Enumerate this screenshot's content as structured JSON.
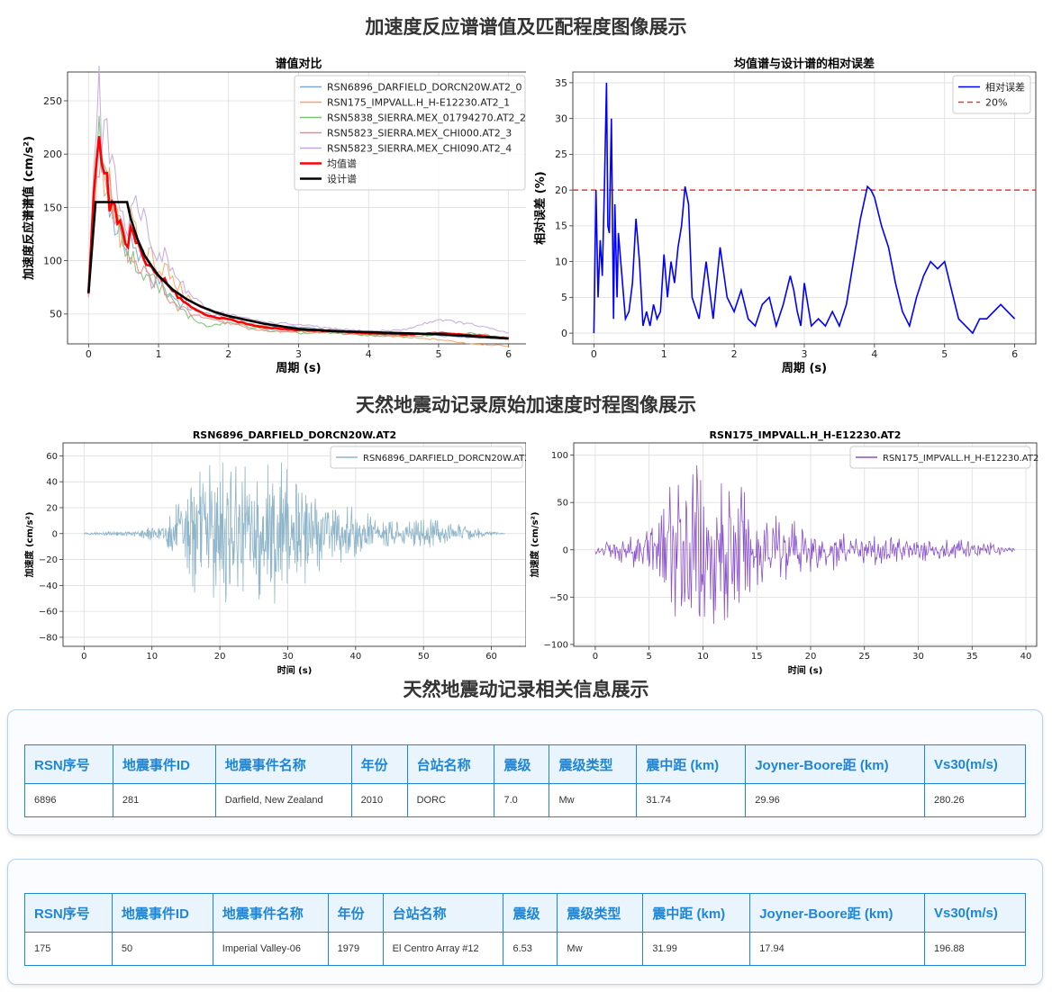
{
  "titles": {
    "spectra_section": "加速度反应谱谱值及匹配程度图像展示",
    "records_section": "天然地震动记录原始加速度时程图像展示",
    "info_section": "天然地震动记录相关信息展示"
  },
  "colors": {
    "series": [
      "#7fa8d1",
      "#f2a66a",
      "#77c274",
      "#ef8a8a",
      "#c3a8dc"
    ],
    "mean": "#ff0000",
    "design": "#000000",
    "error": "#0000ff",
    "threshold": "#e53935",
    "ts1": "#8fb5c9",
    "ts2": "#8a50cc",
    "table_header": "#1f86d6"
  },
  "chart_data": [
    {
      "id": "spectrum-compare",
      "type": "line",
      "title": "谱值对比",
      "xlabel": "周期 (s)",
      "ylabel": "加速度反应谱谱值 (cm/s²)",
      "xlim": [
        -0.3,
        6.3
      ],
      "ylim": [
        22,
        277
      ],
      "xticks": [
        0,
        1,
        2,
        3,
        4,
        5,
        6
      ],
      "yticks": [
        50,
        100,
        150,
        200,
        250
      ],
      "grid": true,
      "legend_position": "top-right",
      "series": [
        {
          "name": "RSN6896_DARFIELD_DORCN20W.AT2_0",
          "x": [
            0,
            0.05,
            0.1,
            0.15,
            0.2,
            0.25,
            0.3,
            0.35,
            0.4,
            0.45,
            0.5,
            0.55,
            0.6,
            0.7,
            0.8,
            0.9,
            1.0,
            1.1,
            1.2,
            1.3,
            1.5,
            1.7,
            2.0,
            2.3,
            2.6,
            3.0,
            3.5,
            4.0,
            4.5,
            5.0,
            5.5,
            6.0
          ],
          "y": [
            70,
            130,
            185,
            215,
            160,
            195,
            140,
            150,
            120,
            135,
            110,
            100,
            130,
            95,
            105,
            75,
            85,
            70,
            68,
            60,
            55,
            50,
            46,
            40,
            38,
            38,
            35,
            33,
            32,
            30,
            28,
            27
          ]
        },
        {
          "name": "RSN175_IMPVALL.H_H-E12230.AT2_1",
          "x": [
            0,
            0.05,
            0.1,
            0.15,
            0.2,
            0.25,
            0.3,
            0.35,
            0.4,
            0.45,
            0.5,
            0.55,
            0.6,
            0.7,
            0.8,
            0.9,
            1.0,
            1.1,
            1.2,
            1.3,
            1.5,
            1.7,
            2.0,
            2.3,
            2.6,
            3.0,
            3.5,
            4.0,
            4.5,
            5.0,
            5.5,
            6.0
          ],
          "y": [
            70,
            110,
            160,
            200,
            180,
            150,
            175,
            140,
            160,
            120,
            130,
            110,
            140,
            120,
            100,
            110,
            90,
            95,
            80,
            75,
            60,
            55,
            45,
            40,
            38,
            34,
            33,
            30,
            28,
            26,
            22,
            20
          ]
        },
        {
          "name": "RSN5838_SIERRA.MEX_01794270.AT2_2",
          "x": [
            0,
            0.05,
            0.1,
            0.15,
            0.2,
            0.25,
            0.3,
            0.35,
            0.4,
            0.45,
            0.5,
            0.55,
            0.6,
            0.7,
            0.8,
            0.9,
            1.0,
            1.1,
            1.2,
            1.3,
            1.5,
            1.7,
            2.0,
            2.3,
            2.6,
            3.0,
            3.5,
            4.0,
            4.5,
            5.0,
            5.5,
            6.0
          ],
          "y": [
            70,
            120,
            190,
            230,
            170,
            210,
            150,
            170,
            130,
            140,
            120,
            100,
            105,
            95,
            80,
            90,
            72,
            75,
            60,
            55,
            45,
            38,
            42,
            38,
            34,
            32,
            32,
            30,
            29,
            30,
            32,
            28
          ]
        },
        {
          "name": "RSN5823_SIERRA.MEX_CHI000.AT2_3",
          "x": [
            0,
            0.05,
            0.1,
            0.15,
            0.2,
            0.25,
            0.3,
            0.35,
            0.4,
            0.45,
            0.5,
            0.55,
            0.6,
            0.7,
            0.8,
            0.9,
            1.0,
            1.1,
            1.2,
            1.3,
            1.5,
            1.7,
            2.0,
            2.3,
            2.6,
            3.0,
            3.5,
            4.0,
            4.5,
            5.0,
            5.5,
            6.0
          ],
          "y": [
            70,
            140,
            200,
            180,
            220,
            160,
            190,
            130,
            150,
            140,
            130,
            100,
            110,
            95,
            90,
            80,
            85,
            65,
            60,
            55,
            50,
            45,
            42,
            36,
            34,
            34,
            33,
            31,
            30,
            33,
            30,
            27
          ]
        },
        {
          "name": "RSN5823_SIERRA.MEX_CHI090.AT2_4",
          "x": [
            0,
            0.05,
            0.1,
            0.15,
            0.2,
            0.25,
            0.3,
            0.35,
            0.4,
            0.45,
            0.5,
            0.55,
            0.6,
            0.7,
            0.8,
            0.9,
            1.0,
            1.1,
            1.2,
            1.3,
            1.5,
            1.7,
            2.0,
            2.3,
            2.6,
            3.0,
            3.5,
            4.0,
            4.5,
            5.0,
            5.5,
            6.0
          ],
          "y": [
            70,
            150,
            230,
            270,
            200,
            240,
            180,
            205,
            150,
            160,
            140,
            125,
            160,
            155,
            140,
            120,
            100,
            105,
            90,
            80,
            65,
            55,
            50,
            45,
            42,
            40,
            36,
            34,
            35,
            45,
            40,
            32
          ]
        },
        {
          "name": "均值谱",
          "x": [
            0,
            0.05,
            0.1,
            0.15,
            0.2,
            0.25,
            0.3,
            0.35,
            0.4,
            0.45,
            0.5,
            0.55,
            0.6,
            0.7,
            0.8,
            0.9,
            1.0,
            1.1,
            1.2,
            1.3,
            1.5,
            1.7,
            2.0,
            2.3,
            2.6,
            3.0,
            3.5,
            4.0,
            4.5,
            5.0,
            5.5,
            6.0
          ],
          "y": [
            70,
            130,
            190,
            210,
            180,
            195,
            150,
            160,
            135,
            140,
            125,
            110,
            130,
            115,
            100,
            95,
            85,
            80,
            72,
            65,
            55,
            48,
            45,
            40,
            37,
            35,
            34,
            32,
            31,
            32,
            30,
            27
          ]
        },
        {
          "name": "设计谱",
          "x": [
            0,
            0.1,
            0.2,
            0.3,
            0.4,
            0.5,
            0.55,
            0.6,
            0.7,
            0.8,
            0.9,
            1.0,
            1.2,
            1.4,
            1.6,
            1.8,
            2.0,
            2.5,
            3.0,
            3.5,
            4.0,
            4.5,
            5.0,
            5.5,
            6.0
          ],
          "y": [
            70,
            155,
            155,
            155,
            155,
            155,
            155,
            140,
            120,
            105,
            95,
            86,
            73,
            64,
            57,
            52,
            48,
            41,
            36,
            34,
            33,
            32,
            31,
            29,
            27
          ]
        }
      ]
    },
    {
      "id": "relative-error",
      "type": "line",
      "title": "均值谱与设计谱的相对误差",
      "xlabel": "周期 (s)",
      "ylabel": "相对误差 (%)",
      "xlim": [
        -0.3,
        6.3
      ],
      "ylim": [
        -1.5,
        36.5
      ],
      "xticks": [
        0,
        1,
        2,
        3,
        4,
        5,
        6
      ],
      "yticks": [
        0,
        5,
        10,
        15,
        20,
        25,
        30,
        35
      ],
      "grid": true,
      "legend_position": "top-right",
      "threshold": {
        "name": "20%",
        "value": 20
      },
      "series": [
        {
          "name": "相对误差",
          "x": [
            0,
            0.03,
            0.06,
            0.09,
            0.12,
            0.15,
            0.18,
            0.2,
            0.22,
            0.25,
            0.28,
            0.3,
            0.33,
            0.35,
            0.4,
            0.45,
            0.5,
            0.55,
            0.6,
            0.65,
            0.7,
            0.75,
            0.8,
            0.85,
            0.9,
            0.95,
            1.0,
            1.05,
            1.1,
            1.15,
            1.2,
            1.25,
            1.3,
            1.35,
            1.4,
            1.5,
            1.6,
            1.65,
            1.7,
            1.8,
            1.9,
            2.0,
            2.1,
            2.2,
            2.3,
            2.4,
            2.5,
            2.6,
            2.7,
            2.8,
            2.85,
            2.9,
            2.95,
            3.0,
            3.1,
            3.2,
            3.3,
            3.4,
            3.5,
            3.6,
            3.7,
            3.8,
            3.9,
            3.95,
            4.0,
            4.1,
            4.2,
            4.3,
            4.4,
            4.5,
            4.6,
            4.7,
            4.8,
            4.9,
            5.0,
            5.1,
            5.2,
            5.3,
            5.4,
            5.5,
            5.6,
            5.7,
            5.8,
            5.9,
            6.0
          ],
          "y": [
            0,
            20,
            5,
            13,
            8,
            20,
            35,
            15,
            14,
            30,
            2,
            18,
            5,
            14,
            8,
            2,
            3,
            7,
            16,
            10,
            1,
            3,
            1,
            4,
            2,
            3,
            11,
            5,
            10,
            7,
            12,
            15,
            20.5,
            18,
            5,
            2,
            10,
            6,
            2,
            12,
            5,
            3,
            6,
            2,
            1,
            4,
            5,
            1,
            4,
            8,
            6,
            3,
            1,
            7,
            1,
            2,
            1,
            3,
            1,
            4,
            10,
            16,
            20.5,
            20,
            19,
            15,
            12,
            7,
            3,
            1,
            5,
            8,
            10,
            9,
            10,
            6,
            2,
            1,
            0,
            2,
            2,
            3,
            4,
            3,
            2
          ]
        }
      ]
    },
    {
      "id": "ts-rsn6896",
      "type": "line",
      "title": "RSN6896_DARFIELD_DORCN20W.AT2",
      "xlabel": "时间 (s)",
      "ylabel": "加速度 (cm/s²)",
      "xlim": [
        -3.1,
        65.1
      ],
      "ylim": [
        -87,
        70
      ],
      "xticks": [
        0,
        10,
        20,
        30,
        40,
        50,
        60
      ],
      "yticks": [
        -80,
        -60,
        -40,
        -20,
        0,
        20,
        40,
        60
      ],
      "grid": true,
      "legend_position": "top-right",
      "series": [
        {
          "name": "RSN6896_DARFIELD_DORCN20W.AT2",
          "x": [
            0,
            8,
            12,
            14,
            16,
            18,
            20,
            22,
            24,
            26,
            28,
            30,
            32,
            34,
            36,
            38,
            40,
            44,
            48,
            52,
            56,
            60,
            62
          ],
          "y": [
            1,
            3,
            10,
            30,
            55,
            65,
            62,
            67,
            60,
            58,
            68,
            60,
            52,
            40,
            30,
            25,
            22,
            16,
            14,
            13,
            8,
            3,
            0
          ]
        }
      ]
    },
    {
      "id": "ts-rsn175",
      "type": "line",
      "title": "RSN175_IMPVALL.H_H-E12230.AT2",
      "xlabel": "时间 (s)",
      "ylabel": "加速度 (cm/s²)",
      "xlim": [
        -2,
        41
      ],
      "ylim": [
        -102,
        113
      ],
      "xticks": [
        0,
        5,
        10,
        15,
        20,
        25,
        30,
        35,
        40
      ],
      "yticks": [
        -100,
        -50,
        0,
        50,
        100
      ],
      "grid": true,
      "legend_position": "top-right",
      "series": [
        {
          "name": "RSN175_IMPVALL.H_H-E12230.AT2",
          "x": [
            0,
            2,
            4,
            5,
            6,
            7,
            8,
            9,
            10,
            11,
            12,
            13,
            14,
            15,
            16,
            18,
            20,
            22,
            24,
            26,
            28,
            30,
            32,
            34,
            36,
            38,
            39
          ],
          "y": [
            5,
            12,
            30,
            40,
            70,
            90,
            100,
            110,
            100,
            85,
            95,
            80,
            75,
            60,
            50,
            40,
            30,
            25,
            22,
            20,
            18,
            16,
            14,
            12,
            10,
            6,
            2
          ]
        }
      ]
    }
  ],
  "tables": [
    {
      "headers": [
        "RSN序号",
        "地震事件ID",
        "地震事件名称",
        "年份",
        "台站名称",
        "震级",
        "震级类型",
        "震中距 (km)",
        "Joyner-Boore距 (km)",
        "Vs30(m/s)"
      ],
      "row": [
        "6896",
        "281",
        "Darfield, New Zealand",
        "2010",
        "DORC",
        "7.0",
        "Mw",
        "31.74",
        "29.96",
        "280.26"
      ]
    },
    {
      "headers": [
        "RSN序号",
        "地震事件ID",
        "地震事件名称",
        "年份",
        "台站名称",
        "震级",
        "震级类型",
        "震中距 (km)",
        "Joyner-Boore距 (km)",
        "Vs30(m/s)"
      ],
      "row": [
        "175",
        "50",
        "Imperial Valley-06",
        "1979",
        "El Centro Array #12",
        "6.53",
        "Mw",
        "31.99",
        "17.94",
        "196.88"
      ]
    }
  ]
}
